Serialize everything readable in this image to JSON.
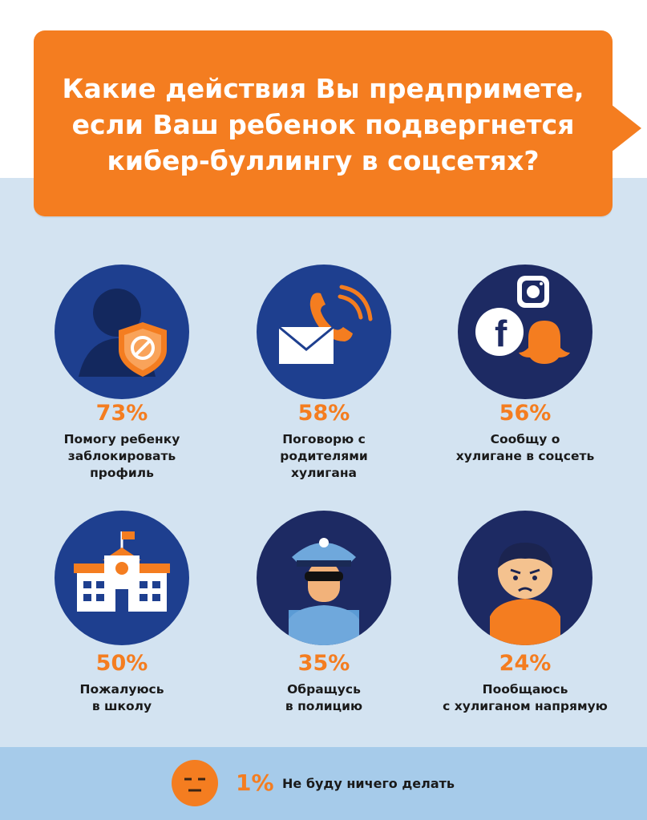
{
  "title_lines": [
    "Какие действия Вы предпримете,",
    "если Ваш ребенок подвергнется",
    "кибер-буллингу в соцсетях?"
  ],
  "chart_data": {
    "type": "table",
    "unit": "%",
    "items": [
      {
        "value": 73,
        "value_label": "73%",
        "label_lines": [
          "Помогу ребенку",
          "заблокировать",
          "профиль"
        ],
        "icon": "shield-user-icon"
      },
      {
        "value": 58,
        "value_label": "58%",
        "label_lines": [
          "Поговорю с",
          "родителями",
          "хулигана"
        ],
        "icon": "phone-mail-icon"
      },
      {
        "value": 56,
        "value_label": "56%",
        "label_lines": [
          "Сообщу о",
          "хулигане в соцсеть"
        ],
        "icon": "social-media-icon"
      },
      {
        "value": 50,
        "value_label": "50%",
        "label_lines": [
          "Пожалуюсь",
          "в школу"
        ],
        "icon": "school-icon"
      },
      {
        "value": 35,
        "value_label": "35%",
        "label_lines": [
          "Обращусь",
          "в полицию"
        ],
        "icon": "police-icon"
      },
      {
        "value": 24,
        "value_label": "24%",
        "label_lines": [
          "Пообщаюсь",
          "с хулиганом напрямую"
        ],
        "icon": "angry-child-icon"
      },
      {
        "value": 1,
        "value_label": "1%",
        "label_lines": [
          "Не буду ничего делать"
        ],
        "icon": "neutral-face-icon"
      }
    ]
  },
  "colors": {
    "accent": "#f47d20",
    "navy": "#1e3f8f",
    "light_bg": "#d3e3f1",
    "bottom_bg": "#a6cbea"
  }
}
